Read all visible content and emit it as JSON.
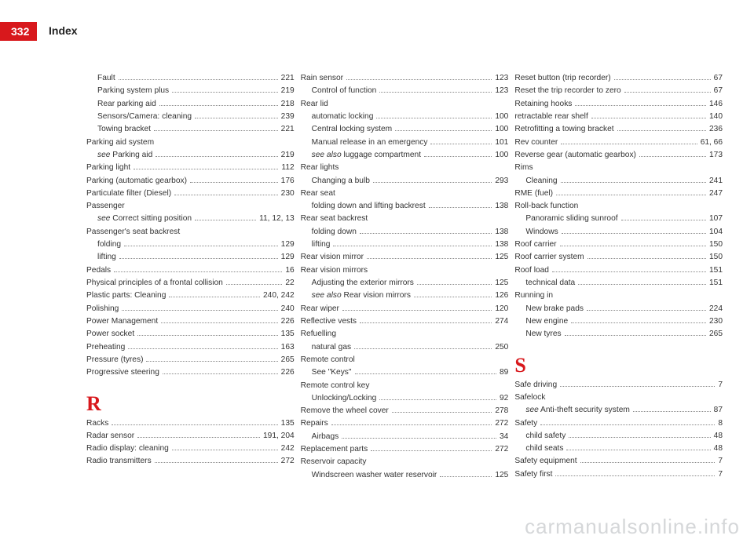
{
  "page_number": "332",
  "header_title": "Index",
  "watermark": "carmanualsonline.info",
  "colors": {
    "accent": "#d8181c",
    "text": "#333333",
    "watermark": "#d5d7d9",
    "background": "#ffffff"
  },
  "col1": [
    {
      "label": "Fault",
      "page": "221",
      "sub": true
    },
    {
      "label": "Parking system plus",
      "page": "219",
      "sub": true
    },
    {
      "label": "Rear parking aid",
      "page": "218",
      "sub": true
    },
    {
      "label": "Sensors/Camera: cleaning",
      "page": "239",
      "sub": true
    },
    {
      "label": "Towing bracket",
      "page": "221",
      "sub": true
    },
    {
      "label": "Parking aid system",
      "page": "",
      "sub": false,
      "nopage": true
    },
    {
      "label": "<em>see</em> Parking aid",
      "page": "219",
      "sub": true
    },
    {
      "label": "Parking light",
      "page": "112",
      "sub": false
    },
    {
      "label": "Parking (automatic gearbox)",
      "page": "176",
      "sub": false
    },
    {
      "label": "Particulate filter (Diesel)",
      "page": "230",
      "sub": false
    },
    {
      "label": "Passenger",
      "page": "",
      "sub": false,
      "nopage": true
    },
    {
      "label": "<em>see</em> Correct sitting position",
      "page": "11, 12, 13",
      "sub": true
    },
    {
      "label": "Passenger's seat backrest",
      "page": "",
      "sub": false,
      "nopage": true
    },
    {
      "label": "folding",
      "page": "129",
      "sub": true
    },
    {
      "label": "lifting",
      "page": "129",
      "sub": true
    },
    {
      "label": "Pedals",
      "page": "16",
      "sub": false
    },
    {
      "label": "Physical principles of a frontal collision",
      "page": "22",
      "sub": false
    },
    {
      "label": "Plastic parts: Cleaning",
      "page": "240, 242",
      "sub": false
    },
    {
      "label": "Polishing",
      "page": "240",
      "sub": false
    },
    {
      "label": "Power Management",
      "page": "226",
      "sub": false
    },
    {
      "label": "Power socket",
      "page": "135",
      "sub": false
    },
    {
      "label": "Preheating",
      "page": "163",
      "sub": false
    },
    {
      "label": "Pressure (tyres)",
      "page": "265",
      "sub": false
    },
    {
      "label": "Progressive steering",
      "page": "226",
      "sub": false
    },
    {
      "section": "R"
    },
    {
      "label": "Racks",
      "page": "135",
      "sub": false
    },
    {
      "label": "Radar sensor",
      "page": "191, 204",
      "sub": false
    },
    {
      "label": "Radio display: cleaning",
      "page": "242",
      "sub": false
    },
    {
      "label": "Radio transmitters",
      "page": "272",
      "sub": false
    }
  ],
  "col2": [
    {
      "label": "Rain sensor",
      "page": "123",
      "sub": false
    },
    {
      "label": "Control of function",
      "page": "123",
      "sub": true
    },
    {
      "label": "Rear lid",
      "page": "",
      "sub": false,
      "nopage": true
    },
    {
      "label": "automatic locking",
      "page": "100",
      "sub": true
    },
    {
      "label": "Central locking system",
      "page": "100",
      "sub": true
    },
    {
      "label": "Manual release in an emergency",
      "page": "101",
      "sub": true
    },
    {
      "label": "<em>see also</em> luggage compartment",
      "page": "100",
      "sub": true
    },
    {
      "label": "Rear lights",
      "page": "",
      "sub": false,
      "nopage": true
    },
    {
      "label": "Changing a bulb",
      "page": "293",
      "sub": true
    },
    {
      "label": "Rear seat",
      "page": "",
      "sub": false,
      "nopage": true
    },
    {
      "label": "folding down and lifting backrest",
      "page": "138",
      "sub": true
    },
    {
      "label": "Rear seat backrest",
      "page": "",
      "sub": false,
      "nopage": true
    },
    {
      "label": "folding down",
      "page": "138",
      "sub": true
    },
    {
      "label": "lifting",
      "page": "138",
      "sub": true
    },
    {
      "label": "Rear vision mirror",
      "page": "125",
      "sub": false
    },
    {
      "label": "Rear vision mirrors",
      "page": "",
      "sub": false,
      "nopage": true
    },
    {
      "label": "Adjusting the exterior mirrors",
      "page": "125",
      "sub": true
    },
    {
      "label": "<em>see also</em> Rear vision mirrors",
      "page": "126",
      "sub": true
    },
    {
      "label": "Rear wiper",
      "page": "120",
      "sub": false
    },
    {
      "label": "Reflective vests",
      "page": "274",
      "sub": false
    },
    {
      "label": "Refuelling",
      "page": "",
      "sub": false,
      "nopage": true
    },
    {
      "label": "natural gas",
      "page": "250",
      "sub": true
    },
    {
      "label": "Remote control",
      "page": "",
      "sub": false,
      "nopage": true
    },
    {
      "label": "See \"Keys\"",
      "page": "89",
      "sub": true
    },
    {
      "label": "Remote control key",
      "page": "",
      "sub": false,
      "nopage": true
    },
    {
      "label": "Unlocking/Locking",
      "page": "92",
      "sub": true
    },
    {
      "label": "Remove the wheel cover",
      "page": "278",
      "sub": false
    },
    {
      "label": "Repairs",
      "page": "272",
      "sub": false
    },
    {
      "label": "Airbags",
      "page": "34",
      "sub": true
    },
    {
      "label": "Replacement parts",
      "page": "272",
      "sub": false
    },
    {
      "label": "Reservoir capacity",
      "page": "",
      "sub": false,
      "nopage": true
    },
    {
      "label": "Windscreen washer water reservoir",
      "page": "125",
      "sub": true
    }
  ],
  "col3": [
    {
      "label": "Reset button (trip recorder)",
      "page": "67",
      "sub": false
    },
    {
      "label": "Reset the trip recorder to zero",
      "page": "67",
      "sub": false
    },
    {
      "label": "Retaining hooks",
      "page": "146",
      "sub": false
    },
    {
      "label": "retractable rear shelf",
      "page": "140",
      "sub": false
    },
    {
      "label": "Retrofitting a towing bracket",
      "page": "236",
      "sub": false
    },
    {
      "label": "Rev counter",
      "page": "61, 66",
      "sub": false
    },
    {
      "label": "Reverse gear (automatic gearbox)",
      "page": "173",
      "sub": false
    },
    {
      "label": "Rims",
      "page": "",
      "sub": false,
      "nopage": true
    },
    {
      "label": "Cleaning",
      "page": "241",
      "sub": true
    },
    {
      "label": "RME (fuel)",
      "page": "247",
      "sub": false
    },
    {
      "label": "Roll-back function",
      "page": "",
      "sub": false,
      "nopage": true
    },
    {
      "label": "Panoramic sliding sunroof",
      "page": "107",
      "sub": true
    },
    {
      "label": "Windows",
      "page": "104",
      "sub": true
    },
    {
      "label": "Roof carrier",
      "page": "150",
      "sub": false
    },
    {
      "label": "Roof carrier system",
      "page": "150",
      "sub": false
    },
    {
      "label": "Roof load",
      "page": "151",
      "sub": false
    },
    {
      "label": "technical data",
      "page": "151",
      "sub": true
    },
    {
      "label": "Running in",
      "page": "",
      "sub": false,
      "nopage": true
    },
    {
      "label": "New brake pads",
      "page": "224",
      "sub": true
    },
    {
      "label": "New engine",
      "page": "230",
      "sub": true
    },
    {
      "label": "New tyres",
      "page": "265",
      "sub": true
    },
    {
      "section": "S"
    },
    {
      "label": "Safe driving",
      "page": "7",
      "sub": false
    },
    {
      "label": "Safelock",
      "page": "",
      "sub": false,
      "nopage": true
    },
    {
      "label": "<em>see</em> Anti-theft security system",
      "page": "87",
      "sub": true
    },
    {
      "label": "Safety",
      "page": "8",
      "sub": false
    },
    {
      "label": "child safety",
      "page": "48",
      "sub": true
    },
    {
      "label": "child seats",
      "page": "48",
      "sub": true
    },
    {
      "label": "Safety equipment",
      "page": "7",
      "sub": false
    },
    {
      "label": "Safety first",
      "page": "7",
      "sub": false
    }
  ]
}
